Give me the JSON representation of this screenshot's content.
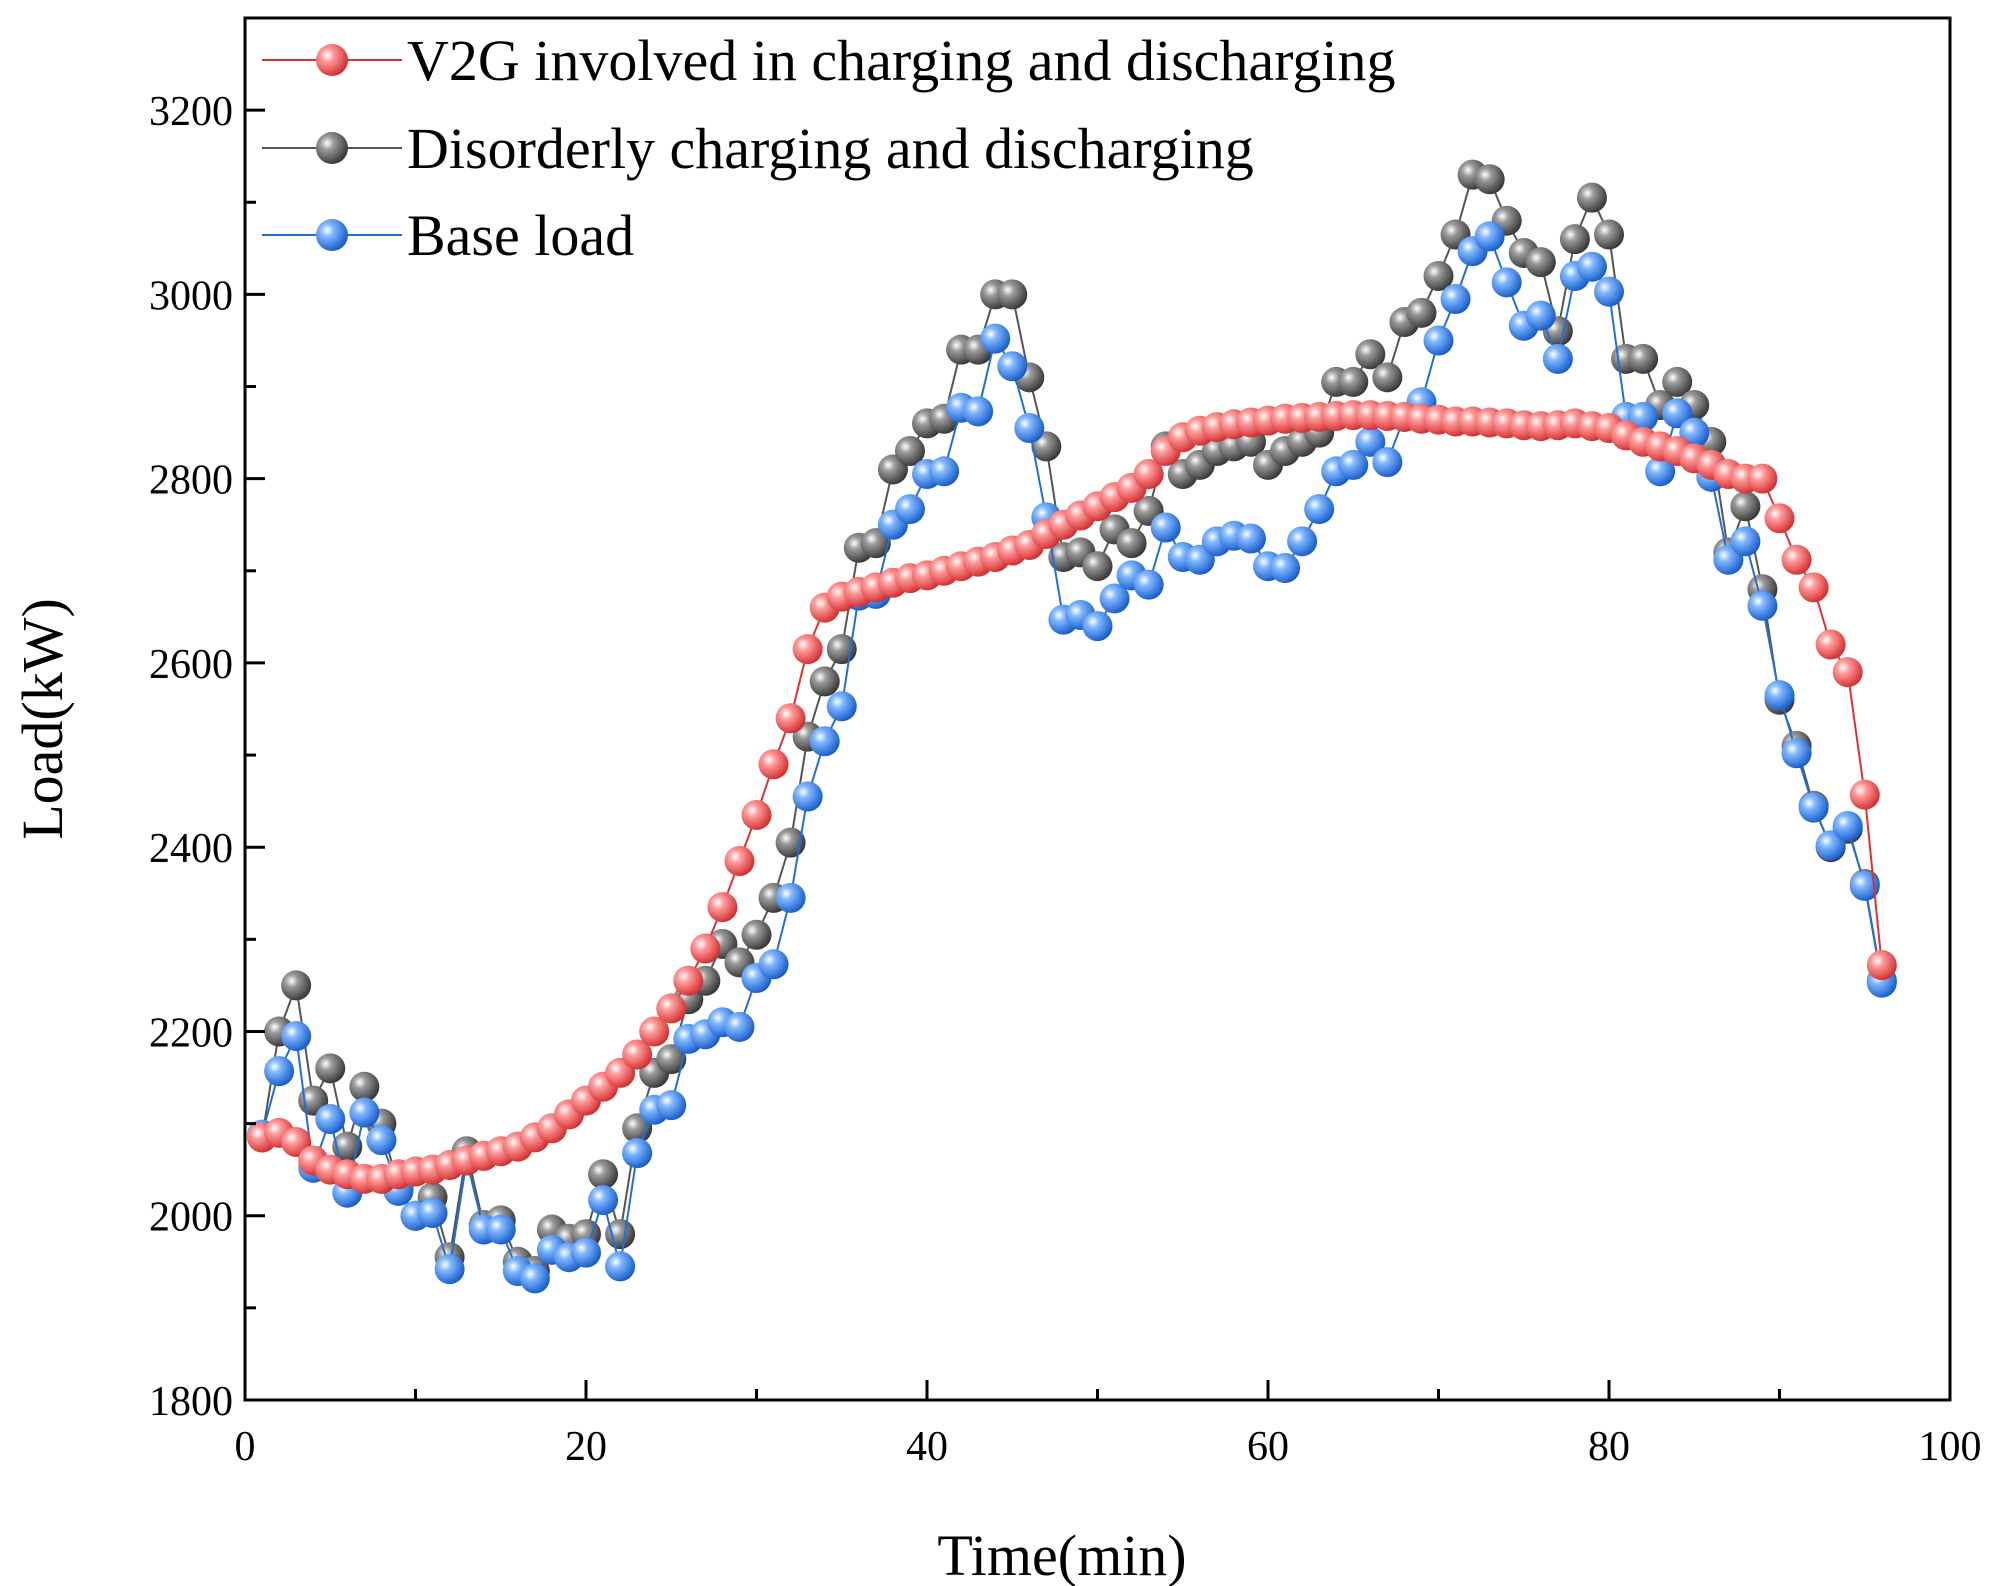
{
  "chart_data": {
    "type": "line",
    "xlabel": "Time(min)",
    "ylabel": "Load(kW)",
    "xlim": [
      0,
      100
    ],
    "ylim": [
      1800,
      3300
    ],
    "xticks": [
      0,
      20,
      40,
      60,
      80,
      100
    ],
    "yticks": [
      1800,
      2000,
      2200,
      2400,
      2600,
      2800,
      3000,
      3200
    ],
    "grid": false,
    "legend_position": "top-left",
    "x": [
      1,
      2,
      3,
      4,
      5,
      6,
      7,
      8,
      9,
      10,
      11,
      12,
      13,
      14,
      15,
      16,
      17,
      18,
      19,
      20,
      21,
      22,
      23,
      24,
      25,
      26,
      27,
      28,
      29,
      30,
      31,
      32,
      33,
      34,
      35,
      36,
      37,
      38,
      39,
      40,
      41,
      42,
      43,
      44,
      45,
      46,
      47,
      48,
      49,
      50,
      51,
      52,
      53,
      54,
      55,
      56,
      57,
      58,
      59,
      60,
      61,
      62,
      63,
      64,
      65,
      66,
      67,
      68,
      69,
      70,
      71,
      72,
      73,
      74,
      75,
      76,
      77,
      78,
      79,
      80,
      81,
      82,
      83,
      84,
      85,
      86,
      87,
      88,
      89,
      90,
      91,
      92,
      93,
      94,
      95,
      96
    ],
    "series": [
      {
        "name": "Disorderly charging and discharging",
        "color": "#555555",
        "values": [
          2085,
          2200,
          2250,
          2125,
          2160,
          2075,
          2140,
          2100,
          2030,
          2000,
          2020,
          1955,
          2070,
          1990,
          1995,
          1950,
          1940,
          1985,
          1975,
          1980,
          2045,
          1980,
          2095,
          2155,
          2170,
          2235,
          2255,
          2295,
          2275,
          2305,
          2345,
          2405,
          2520,
          2580,
          2615,
          2725,
          2730,
          2810,
          2830,
          2860,
          2865,
          2940,
          2940,
          3000,
          3000,
          2910,
          2835,
          2715,
          2720,
          2705,
          2745,
          2730,
          2765,
          2835,
          2805,
          2815,
          2830,
          2835,
          2840,
          2815,
          2830,
          2840,
          2850,
          2905,
          2905,
          2935,
          2910,
          2970,
          2980,
          3020,
          3065,
          3130,
          3125,
          3080,
          3045,
          3035,
          2960,
          3060,
          3105,
          3065,
          2930,
          2930,
          2880,
          2905,
          2880,
          2840,
          2720,
          2770,
          2680,
          2560,
          2510,
          2445,
          2400,
          2420,
          2360,
          2255
        ]
      },
      {
        "name": "Base load",
        "color": "#1f6fd9",
        "values": [
          2088,
          2157,
          2195,
          2052,
          2105,
          2025,
          2112,
          2082,
          2027,
          2000,
          2003,
          1942,
          2060,
          1985,
          1985,
          1940,
          1932,
          1963,
          1955,
          1960,
          2017,
          1945,
          2068,
          2115,
          2120,
          2192,
          2197,
          2210,
          2205,
          2258,
          2273,
          2345,
          2455,
          2515,
          2553,
          2673,
          2675,
          2750,
          2767,
          2805,
          2808,
          2877,
          2873,
          2952,
          2922,
          2855,
          2758,
          2647,
          2652,
          2640,
          2670,
          2695,
          2685,
          2747,
          2715,
          2712,
          2732,
          2738,
          2735,
          2705,
          2703,
          2732,
          2767,
          2808,
          2815,
          2840,
          2818,
          2867,
          2883,
          2950,
          2995,
          3047,
          3063,
          3013,
          2966,
          2977,
          2930,
          3020,
          3030,
          3003,
          2867,
          2867,
          2808,
          2871,
          2850,
          2802,
          2712,
          2732,
          2662,
          2565,
          2502,
          2443,
          2402,
          2423,
          2358,
          2253
        ]
      },
      {
        "name": "V2G involved in charging and discharging",
        "color": "#e03030",
        "values": [
          2085,
          2090,
          2080,
          2060,
          2050,
          2045,
          2040,
          2040,
          2045,
          2048,
          2050,
          2055,
          2060,
          2065,
          2070,
          2075,
          2085,
          2095,
          2110,
          2125,
          2140,
          2155,
          2175,
          2200,
          2225,
          2255,
          2290,
          2335,
          2385,
          2435,
          2490,
          2540,
          2615,
          2660,
          2672,
          2677,
          2682,
          2687,
          2692,
          2695,
          2700,
          2705,
          2710,
          2715,
          2722,
          2728,
          2740,
          2750,
          2760,
          2770,
          2780,
          2790,
          2805,
          2830,
          2845,
          2852,
          2856,
          2859,
          2861,
          2863,
          2865,
          2866,
          2867,
          2868,
          2869,
          2869,
          2868,
          2867,
          2865,
          2864,
          2862,
          2862,
          2861,
          2860,
          2858,
          2857,
          2858,
          2860,
          2857,
          2855,
          2847,
          2840,
          2835,
          2830,
          2822,
          2815,
          2805,
          2800,
          2800,
          2757,
          2712,
          2682,
          2620,
          2590,
          2457,
          2272
        ]
      }
    ]
  },
  "legend": [
    {
      "label": "V2G involved in charging and discharging",
      "color": "#e03030"
    },
    {
      "label": "Disorderly charging and discharging",
      "color": "#555555"
    },
    {
      "label": "Base load",
      "color": "#1f6fd9"
    }
  ]
}
